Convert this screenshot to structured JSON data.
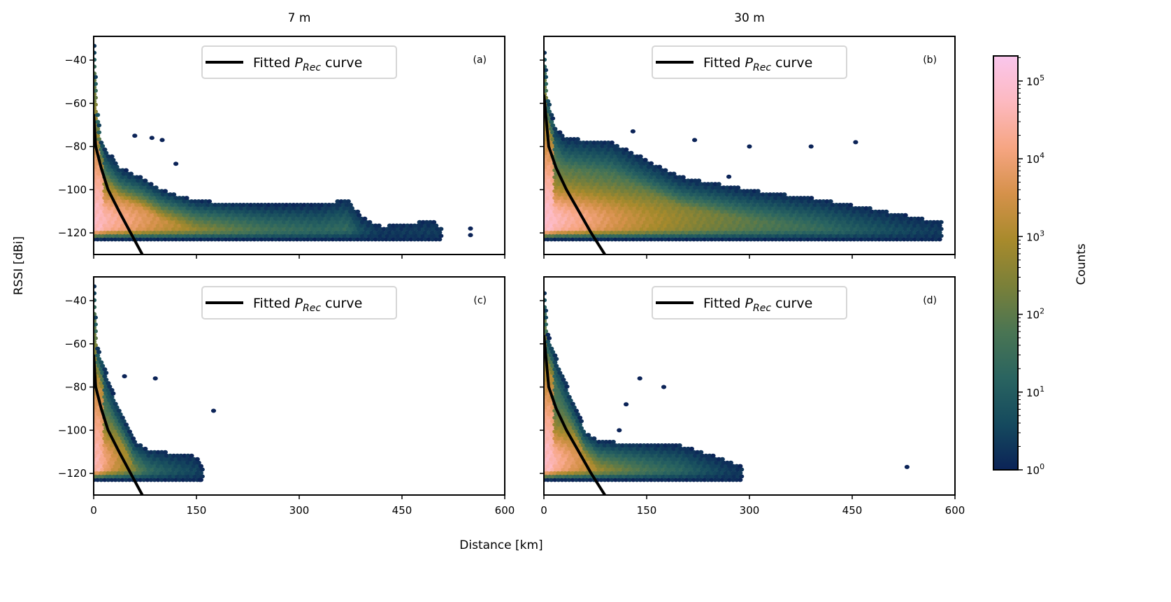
{
  "chart_data": {
    "type": "heatmap",
    "subtype": "hexbin",
    "xlabel": "Distance [km]",
    "ylabel": "RSSI [dBi]",
    "xlim": [
      0,
      600
    ],
    "ylim": [
      -130,
      -29
    ],
    "xticks": [
      0,
      150,
      300,
      450,
      600
    ],
    "yticks": [
      -40,
      -60,
      -80,
      -100,
      -120
    ],
    "column_titles": [
      "7 m",
      "30 m"
    ],
    "legend_label": "Fitted",
    "legend_symbol": "P",
    "legend_subscript": "Rec",
    "legend_suffix": "curve",
    "colorbar": {
      "label": "Counts",
      "scale": "log",
      "range": [
        1,
        210000
      ],
      "tick_base": "10",
      "tick_exponents": [
        "0",
        "1",
        "2",
        "3",
        "4",
        "5"
      ],
      "colormap": [
        "#0b2357",
        "#154a5e",
        "#2a6460",
        "#4a7553",
        "#7a8039",
        "#a88a2c",
        "#d5914a",
        "#f6a582",
        "#fdb9c0",
        "#fac6ec"
      ]
    },
    "panels": [
      {
        "tag": "(a)",
        "column": "7 m",
        "peak_log_count": 4.6,
        "envelope_top": [
          [
            0,
            -30
          ],
          [
            5,
            -60
          ],
          [
            10,
            -76
          ],
          [
            20,
            -82
          ],
          [
            40,
            -90
          ],
          [
            70,
            -94
          ],
          [
            100,
            -100
          ],
          [
            150,
            -105
          ],
          [
            250,
            -107
          ],
          [
            330,
            -107
          ],
          [
            370,
            -104
          ],
          [
            390,
            -112
          ],
          [
            420,
            -117
          ],
          [
            500,
            -114
          ],
          [
            510,
            -120
          ]
        ],
        "outliers": [
          [
            550,
            -118
          ],
          [
            550,
            -121
          ],
          [
            60,
            -75
          ],
          [
            100,
            -77
          ],
          [
            85,
            -76
          ],
          [
            120,
            -88
          ]
        ],
        "fitted_curve": [
          [
            0,
            -65
          ],
          [
            3,
            -80
          ],
          [
            11,
            -90
          ],
          [
            21,
            -100
          ],
          [
            37,
            -110
          ],
          [
            54,
            -120
          ],
          [
            71,
            -130
          ]
        ]
      },
      {
        "tag": "(b)",
        "column": "30 m",
        "peak_log_count": 4.7,
        "envelope_top": [
          [
            0,
            -33
          ],
          [
            5,
            -55
          ],
          [
            15,
            -70
          ],
          [
            30,
            -76
          ],
          [
            100,
            -78
          ],
          [
            150,
            -86
          ],
          [
            200,
            -94
          ],
          [
            300,
            -100
          ],
          [
            400,
            -104
          ],
          [
            500,
            -110
          ],
          [
            580,
            -115
          ]
        ],
        "outliers": [
          [
            455,
            -78
          ],
          [
            390,
            -80
          ],
          [
            300,
            -80
          ],
          [
            270,
            -94
          ],
          [
            130,
            -73
          ],
          [
            220,
            -77
          ]
        ],
        "fitted_curve": [
          [
            0,
            -56
          ],
          [
            7,
            -80
          ],
          [
            18,
            -90
          ],
          [
            33,
            -100
          ],
          [
            51,
            -110
          ],
          [
            69,
            -120
          ],
          [
            89,
            -130
          ]
        ]
      },
      {
        "tag": "(c)",
        "column": "7 m",
        "peak_log_count": 4.4,
        "envelope_top": [
          [
            0,
            -30
          ],
          [
            5,
            -60
          ],
          [
            15,
            -70
          ],
          [
            30,
            -84
          ],
          [
            60,
            -105
          ],
          [
            80,
            -109
          ],
          [
            150,
            -112
          ],
          [
            160,
            -118
          ]
        ],
        "outliers": [
          [
            175,
            -91
          ],
          [
            45,
            -75
          ],
          [
            90,
            -76
          ],
          [
            155,
            -123
          ]
        ],
        "fitted_curve": [
          [
            0,
            -65
          ],
          [
            3,
            -80
          ],
          [
            11,
            -90
          ],
          [
            21,
            -100
          ],
          [
            37,
            -110
          ],
          [
            54,
            -120
          ],
          [
            71,
            -130
          ]
        ]
      },
      {
        "tag": "(d)",
        "column": "30 m",
        "peak_log_count": 4.6,
        "envelope_top": [
          [
            0,
            -33
          ],
          [
            5,
            -55
          ],
          [
            20,
            -68
          ],
          [
            40,
            -84
          ],
          [
            60,
            -100
          ],
          [
            80,
            -105
          ],
          [
            200,
            -107
          ],
          [
            250,
            -112
          ],
          [
            290,
            -117
          ]
        ],
        "outliers": [
          [
            530,
            -117
          ],
          [
            175,
            -80
          ],
          [
            140,
            -76
          ],
          [
            110,
            -100
          ],
          [
            120,
            -88
          ]
        ],
        "fitted_curve": [
          [
            0,
            -56
          ],
          [
            7,
            -80
          ],
          [
            18,
            -90
          ],
          [
            33,
            -100
          ],
          [
            51,
            -110
          ],
          [
            69,
            -120
          ],
          [
            89,
            -130
          ]
        ]
      }
    ]
  }
}
